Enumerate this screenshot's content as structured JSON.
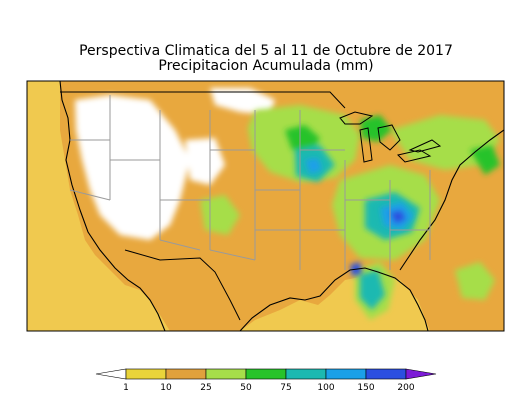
{
  "title_line1": "Perspectiva Climatica del 5 al 11 de Octubre de 2017",
  "title_line2": "Precipitacion Acumulada (mm)",
  "legend": {
    "labels": [
      "1",
      "10",
      "25",
      "50",
      "75",
      "100",
      "150",
      "200"
    ],
    "colors": [
      "#ffffff",
      "#e9d43a",
      "#e0a13c",
      "#a6de4a",
      "#27c32a",
      "#1cb9b1",
      "#1ba0e8",
      "#2b4fe0",
      "#7c1bd6"
    ]
  },
  "map": {
    "ocean_color": "#f0c94f",
    "land_base_color": "#e8a83e",
    "dry_color": "#ffffff",
    "border_color": "#9a9a9a",
    "coast_color": "#000000"
  }
}
